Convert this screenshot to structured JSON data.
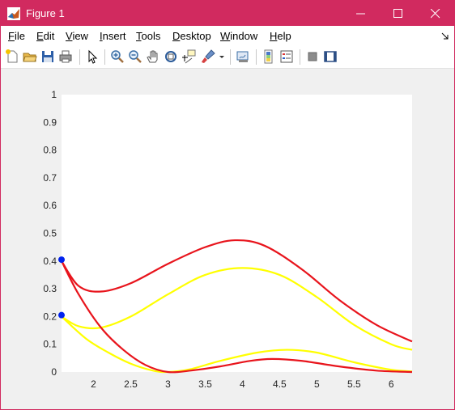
{
  "window": {
    "title": "Figure 1",
    "accent_color": "#d12a5f"
  },
  "menubar": {
    "items": [
      {
        "first": "F",
        "rest": "ile"
      },
      {
        "first": "E",
        "rest": "dit"
      },
      {
        "first": "V",
        "rest": "iew"
      },
      {
        "first": "I",
        "rest": "nsert"
      },
      {
        "first": "T",
        "rest": "ools"
      },
      {
        "first": "D",
        "rest": "esktop"
      },
      {
        "first": "W",
        "rest": "indow"
      },
      {
        "first": "H",
        "rest": "elp"
      }
    ]
  },
  "toolbar": {
    "icons": [
      "new-figure-icon",
      "open-file-icon",
      "save-icon",
      "print-icon",
      "edit-plot-arrow-icon",
      "zoom-in-icon",
      "zoom-out-icon",
      "pan-hand-icon",
      "rotate-3d-icon",
      "data-cursor-icon",
      "brush-icon",
      "brush-dropdown-icon",
      "link-plot-icon",
      "colorbar-icon",
      "legend-icon",
      "hide-plot-tools-icon",
      "show-plot-tools-icon"
    ]
  },
  "chart_data": {
    "type": "line",
    "xlim": [
      1.57,
      6.28
    ],
    "ylim": [
      0,
      1
    ],
    "xticks": [
      "2",
      "2.5",
      "3",
      "3.5",
      "4",
      "4.5",
      "5",
      "5.5",
      "6"
    ],
    "yticks": [
      "0",
      "0.1",
      "0.2",
      "0.3",
      "0.4",
      "0.5",
      "0.6",
      "0.7",
      "0.8",
      "0.9",
      "1"
    ],
    "grid": false,
    "series": [
      {
        "color": "#e8141c",
        "x": [
          1.57,
          1.8,
          2.1,
          2.5,
          3.0,
          3.5,
          3.9,
          4.3,
          4.8,
          5.3,
          5.8,
          6.28
        ],
        "y": [
          0.4,
          0.31,
          0.29,
          0.32,
          0.39,
          0.45,
          0.475,
          0.455,
          0.37,
          0.26,
          0.17,
          0.11
        ]
      },
      {
        "color": "#ffff00",
        "x": [
          1.57,
          1.8,
          2.1,
          2.5,
          3.0,
          3.5,
          4.0,
          4.5,
          5.0,
          5.5,
          6.0,
          6.28
        ],
        "y": [
          0.2,
          0.165,
          0.16,
          0.2,
          0.28,
          0.35,
          0.375,
          0.35,
          0.27,
          0.17,
          0.1,
          0.08
        ]
      },
      {
        "color": "#ffff00",
        "x": [
          1.57,
          1.9,
          2.2,
          2.5,
          2.8,
          3.0,
          3.3,
          3.7,
          4.2,
          4.6,
          5.0,
          5.5,
          6.0,
          6.28
        ],
        "y": [
          0.2,
          0.12,
          0.07,
          0.03,
          0.005,
          0.0,
          0.01,
          0.04,
          0.07,
          0.08,
          0.07,
          0.035,
          0.008,
          0.002
        ]
      },
      {
        "color": "#e8141c",
        "x": [
          1.57,
          1.8,
          2.1,
          2.4,
          2.7,
          3.0,
          3.3,
          3.7,
          4.1,
          4.4,
          4.8,
          5.3,
          5.8,
          6.28
        ],
        "y": [
          0.4,
          0.28,
          0.16,
          0.08,
          0.025,
          0.0,
          0.005,
          0.02,
          0.04,
          0.047,
          0.04,
          0.02,
          0.005,
          0.0
        ]
      }
    ],
    "markers": [
      {
        "x": 1.57,
        "y": 0.405,
        "color": "#0022ee"
      },
      {
        "x": 1.57,
        "y": 0.205,
        "color": "#0022ee"
      }
    ]
  }
}
